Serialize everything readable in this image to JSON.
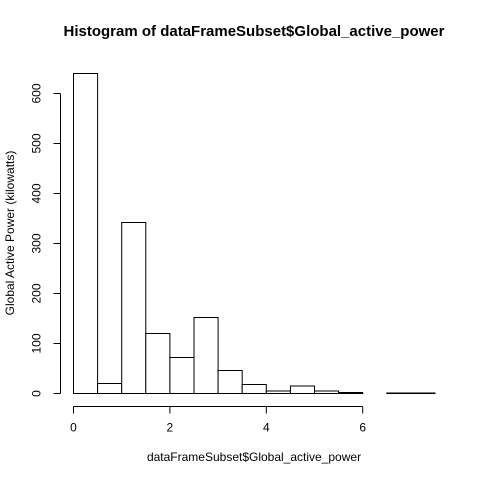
{
  "chart_data": {
    "type": "bar",
    "title": "Histogram of dataFrameSubset$Global_active_power",
    "xlabel": "dataFrameSubset$Global_active_power",
    "ylabel": "Global Active Power (kilowatts)",
    "xlim": [
      0,
      7.5
    ],
    "ylim": [
      0,
      640
    ],
    "x_ticks": [
      "0",
      "2",
      "4",
      "6"
    ],
    "y_ticks": [
      "0",
      "100",
      "200",
      "300",
      "400",
      "500",
      "600"
    ],
    "bins": [
      {
        "start": 0.0,
        "end": 0.5,
        "count": 640
      },
      {
        "start": 0.5,
        "end": 1.0,
        "count": 20
      },
      {
        "start": 1.0,
        "end": 1.5,
        "count": 342
      },
      {
        "start": 1.5,
        "end": 2.0,
        "count": 120
      },
      {
        "start": 2.0,
        "end": 2.5,
        "count": 72
      },
      {
        "start": 2.5,
        "end": 3.0,
        "count": 152
      },
      {
        "start": 3.0,
        "end": 3.5,
        "count": 46
      },
      {
        "start": 3.5,
        "end": 4.0,
        "count": 18
      },
      {
        "start": 4.0,
        "end": 4.5,
        "count": 5
      },
      {
        "start": 4.5,
        "end": 5.0,
        "count": 15
      },
      {
        "start": 5.0,
        "end": 5.5,
        "count": 5
      },
      {
        "start": 5.5,
        "end": 6.0,
        "count": 2
      },
      {
        "start": 6.0,
        "end": 6.5,
        "count": 0
      },
      {
        "start": 6.5,
        "end": 7.0,
        "count": 1
      },
      {
        "start": 7.0,
        "end": 7.5,
        "count": 1
      }
    ]
  }
}
